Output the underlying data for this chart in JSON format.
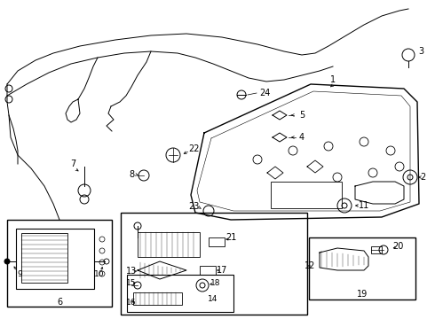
{
  "bg_color": "#ffffff",
  "fig_w": 4.9,
  "fig_h": 3.6,
  "dpi": 100
}
